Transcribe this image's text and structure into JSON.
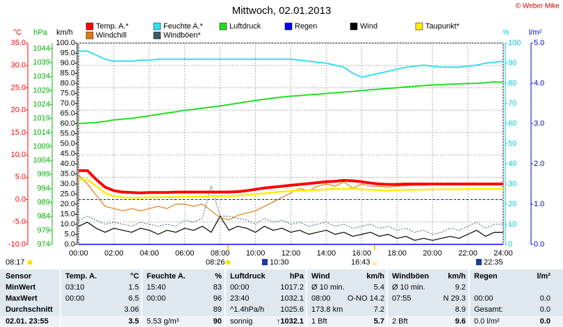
{
  "chart_data": {
    "type": "line",
    "title": "Mittwoch, 02.01.2013",
    "copyright": "© Weber Mike",
    "grid": true,
    "xlim": [
      0,
      24
    ],
    "xticks": [
      {
        "value": 0,
        "label": "00:00"
      },
      {
        "value": 2,
        "label": "02:00"
      },
      {
        "value": 4,
        "label": "04:00"
      },
      {
        "value": 6,
        "label": "06:00"
      },
      {
        "value": 8,
        "label": "08:00"
      },
      {
        "value": 10,
        "label": "10:00"
      },
      {
        "value": 12,
        "label": "12:00"
      },
      {
        "value": 14,
        "label": "14:00"
      },
      {
        "value": 16,
        "label": "16:00"
      },
      {
        "value": 18,
        "label": "18:00"
      },
      {
        "value": 20,
        "label": "20:00"
      },
      {
        "value": 22,
        "label": "22:00"
      },
      {
        "value": 24,
        "label": "24:00"
      }
    ],
    "x": [
      0,
      0.5,
      1,
      1.5,
      2,
      2.5,
      3,
      3.5,
      4,
      4.5,
      5,
      5.5,
      6,
      6.5,
      7,
      7.5,
      8,
      8.5,
      9,
      9.5,
      10,
      10.5,
      11,
      11.5,
      12,
      12.5,
      13,
      13.5,
      14,
      14.5,
      15,
      15.5,
      16,
      16.5,
      17,
      17.5,
      18,
      18.5,
      19,
      19.5,
      20,
      20.5,
      21,
      21.5,
      22,
      22.5,
      23,
      23.5,
      24
    ],
    "ylabel": "°C",
    "ycolor": "#ff0000",
    "ylim": [
      -10,
      35
    ],
    "yticks": [
      {
        "value": 35,
        "label": "35.0"
      },
      {
        "value": 30,
        "label": "30.0"
      },
      {
        "value": 25,
        "label": "25.0"
      },
      {
        "value": 20,
        "label": "20.0"
      },
      {
        "value": 15,
        "label": "15.0"
      },
      {
        "value": 10,
        "label": "10.0"
      },
      {
        "value": 5,
        "label": "5.0"
      },
      {
        "value": 0,
        "label": "0.0"
      },
      {
        "value": -5,
        "label": "-5.0"
      },
      {
        "value": -10,
        "label": "-10.0"
      }
    ],
    "y2label": "hPa",
    "y2color": "#00b000",
    "y2lim": [
      974,
      1046
    ],
    "y2ticks": [
      1044,
      1039,
      1034,
      1029,
      1024,
      1019,
      1014,
      1009,
      1004,
      999,
      994,
      989,
      984,
      979,
      974
    ],
    "y3label": "km/h",
    "y3color": "#000000",
    "y3lim": [
      0,
      100
    ],
    "y3ticks": [
      {
        "value": 100,
        "label": "100.0"
      },
      {
        "value": 95,
        "label": "95.0"
      },
      {
        "value": 90,
        "label": "90.0"
      },
      {
        "value": 85,
        "label": "85.0"
      },
      {
        "value": 80,
        "label": "80.0"
      },
      {
        "value": 75,
        "label": "75.0"
      },
      {
        "value": 70,
        "label": "70.0"
      },
      {
        "value": 65,
        "label": "65.0"
      },
      {
        "value": 60,
        "label": "60.0"
      },
      {
        "value": 55,
        "label": "55.0"
      },
      {
        "value": 50,
        "label": "50.0"
      },
      {
        "value": 45,
        "label": "45.0"
      },
      {
        "value": 40,
        "label": "40.0"
      },
      {
        "value": 35,
        "label": "35.0"
      },
      {
        "value": 30,
        "label": "30.0"
      },
      {
        "value": 25,
        "label": "25.0"
      },
      {
        "value": 20,
        "label": "20.0"
      },
      {
        "value": 15,
        "label": "15.0"
      },
      {
        "value": 10,
        "label": "10.0"
      },
      {
        "value": 5,
        "label": "5.0"
      },
      {
        "value": 0,
        "label": "0.0"
      }
    ],
    "y4label": "%",
    "y4color": "#00c8d8",
    "y4lim": [
      0,
      100
    ],
    "y4ticks": [
      100,
      90,
      80,
      70,
      60,
      50,
      40,
      30,
      20,
      10,
      0
    ],
    "y5label": "l/m²",
    "y5color": "#0000cc",
    "y5lim": [
      0,
      5
    ],
    "y5ticks": [
      {
        "value": 5,
        "label": "5.0"
      },
      {
        "value": 4,
        "label": "4.0"
      },
      {
        "value": 3,
        "label": "3.0"
      },
      {
        "value": 2,
        "label": "2.0"
      },
      {
        "value": 1,
        "label": "1.0"
      },
      {
        "value": 0,
        "label": "0.0"
      }
    ],
    "series": [
      {
        "name": "Temp. A.*",
        "color": "#ff0000",
        "axis": "y",
        "values": [
          6.5,
          6.5,
          4.5,
          2.8,
          2.0,
          1.7,
          1.6,
          1.5,
          1.6,
          1.6,
          1.6,
          1.7,
          1.7,
          1.7,
          1.7,
          1.7,
          1.7,
          1.7,
          1.8,
          2.0,
          2.3,
          2.6,
          2.8,
          3.0,
          3.2,
          3.4,
          3.6,
          3.8,
          4.0,
          4.1,
          4.3,
          4.2,
          4.0,
          3.7,
          3.5,
          3.4,
          3.4,
          3.5,
          3.5,
          3.5,
          3.5,
          3.5,
          3.5,
          3.5,
          3.5,
          3.5,
          3.5,
          3.5,
          3.5
        ]
      },
      {
        "name": "Feuchte A.*",
        "color": "#33e0f0",
        "axis": "y4",
        "values": [
          96,
          96,
          94,
          92,
          91,
          91,
          91,
          91.5,
          91.5,
          92,
          92,
          92,
          92,
          92,
          92,
          92,
          92,
          92,
          92,
          92,
          92,
          92,
          92,
          92,
          92,
          91.5,
          91,
          90.5,
          90,
          89,
          88,
          85,
          83,
          84,
          85,
          86,
          87,
          88,
          88.5,
          89,
          88.5,
          88,
          88,
          88,
          88.5,
          89,
          90,
          90.5,
          91
        ]
      },
      {
        "name": "Luftdruck",
        "color": "#22dd22",
        "axis": "y2",
        "values": [
          1017.2,
          1017.4,
          1017.6,
          1018.0,
          1018.5,
          1018.8,
          1019.1,
          1019.5,
          1020.0,
          1020.5,
          1021.0,
          1021.4,
          1022.0,
          1022.3,
          1022.7,
          1023.1,
          1023.5,
          1024.0,
          1024.5,
          1025.0,
          1025.5,
          1025.9,
          1026.3,
          1026.7,
          1027.0,
          1027.2,
          1027.5,
          1027.7,
          1028.0,
          1028.2,
          1028.5,
          1028.7,
          1029.0,
          1029.3,
          1029.5,
          1029.8,
          1030.0,
          1030.3,
          1030.5,
          1030.8,
          1031.0,
          1031.1,
          1031.3,
          1031.4,
          1031.5,
          1031.6,
          1031.8,
          1032.1,
          1032.0
        ]
      },
      {
        "name": "Regen",
        "color": "#0000ff",
        "axis": "y5",
        "values": [
          0,
          0,
          0,
          0,
          0,
          0,
          0,
          0,
          0,
          0,
          0,
          0,
          0,
          0,
          0,
          0,
          0,
          0,
          0,
          0,
          0,
          0,
          0,
          0,
          0,
          0,
          0,
          0,
          0,
          0,
          0,
          0,
          0,
          0,
          0,
          0,
          0,
          0,
          0,
          0,
          0,
          0,
          0,
          0,
          0,
          0,
          0,
          0,
          0
        ]
      },
      {
        "name": "Wind",
        "color": "#000000",
        "axis": "y3",
        "values": [
          9,
          11,
          8,
          6,
          8,
          7,
          6,
          8,
          7,
          5,
          7,
          6,
          8,
          7,
          9,
          6,
          14,
          7,
          9,
          8,
          6,
          9,
          7,
          8,
          6,
          7,
          5,
          6,
          7,
          5,
          6,
          4,
          5,
          6,
          4,
          5,
          3,
          4,
          2,
          3,
          2,
          3,
          4,
          3,
          5,
          7,
          4,
          6,
          6
        ]
      },
      {
        "name": "Taupunkt*",
        "color": "#ffee00",
        "axis": "y",
        "values": [
          4.5,
          4.5,
          3.0,
          1.5,
          0.8,
          0.5,
          0.4,
          0.4,
          0.5,
          0.5,
          0.6,
          0.6,
          0.7,
          0.7,
          0.7,
          0.8,
          0.8,
          0.8,
          0.9,
          1.0,
          1.2,
          1.4,
          1.6,
          1.8,
          1.9,
          2.0,
          2.1,
          2.2,
          2.3,
          2.4,
          2.4,
          2.4,
          2.3,
          2.2,
          2.1,
          2.0,
          2.1,
          2.2,
          2.2,
          2.2,
          2.3,
          2.3,
          2.3,
          2.3,
          2.4,
          2.4,
          2.4,
          2.4,
          2.4
        ]
      },
      {
        "name": "Windchill",
        "color": "#e07a10",
        "axis": "y",
        "values": [
          5.5,
          3.5,
          1.0,
          -1.5,
          -2.0,
          -2.5,
          -2.0,
          -2.5,
          -2.0,
          -1.5,
          -2.0,
          -1.0,
          -1.0,
          -1.5,
          -1.0,
          -2.5,
          -4.0,
          -4.5,
          -3.5,
          -3.0,
          -2.5,
          -1.5,
          -0.5,
          0.5,
          1.5,
          2.5,
          2.0,
          3.0,
          3.5,
          3.0,
          4.0,
          2.5,
          3.5,
          3.0,
          3.0,
          2.8,
          3.0,
          3.1,
          3.2,
          3.2,
          3.3,
          3.3,
          3.3,
          3.3,
          3.4,
          3.4,
          3.4,
          3.4,
          3.4
        ]
      },
      {
        "name": "Windböen*",
        "color": "#3a5a6a",
        "axis": "y3",
        "values": [
          12,
          14,
          12,
          10,
          11,
          10,
          9,
          11,
          10,
          9,
          10,
          9,
          12,
          11,
          13,
          29,
          14,
          14,
          13,
          12,
          10,
          13,
          11,
          12,
          10,
          11,
          9,
          10,
          11,
          9,
          10,
          8,
          9,
          10,
          8,
          9,
          7,
          8,
          6,
          7,
          5,
          6,
          8,
          7,
          9,
          11,
          8,
          10,
          10
        ]
      }
    ]
  },
  "events": [
    "08:17",
    "08:26",
    "10:30",
    "16:43",
    "22:35"
  ],
  "table": {
    "header": [
      "Sensor",
      "Temp. A.",
      "°C",
      "Feuchte A.",
      "%",
      "Luftdruck",
      "hPa",
      "Wind",
      "km/h",
      "Windböen",
      "km/h",
      "Regen",
      "l/m²"
    ],
    "rows": [
      [
        "MinWert",
        "03:10",
        "1.5",
        "15:40",
        "83",
        "00:00",
        "1017.2",
        "Ø 10 min.",
        "5.4",
        "Ø 10 min.",
        "9.2",
        null,
        null
      ],
      [
        "MaxWert",
        "00:00",
        "6.5",
        "00:00",
        "96",
        "23:40",
        "1032.1",
        "08:00",
        "O-NO 14.2",
        "07:55",
        "N 29.3",
        "00:00",
        "0.0"
      ],
      [
        "Durchschnitt",
        null,
        "3.06",
        null,
        "89",
        "^1.4hPa/h",
        "1025.6",
        "173.8 km",
        "7.2",
        null,
        "8.9",
        "Gesamt:",
        "0.0"
      ],
      [
        "02.01. 23:55",
        null,
        "3.5",
        "5.53 g/m³",
        "90",
        "sonnig",
        "↑1032.1",
        "1 Bft",
        "5.7",
        "2 Bft",
        "9.6",
        "0.0 l/m²",
        "0.0"
      ]
    ]
  }
}
